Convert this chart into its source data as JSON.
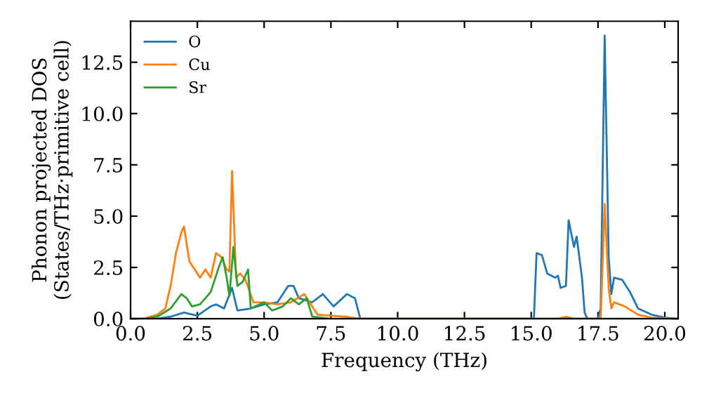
{
  "chart_data": {
    "type": "line",
    "xlabel": "Frequency (THz)",
    "ylabel": "Phonon projected DOS\n(States/THz·primitive cell)",
    "xlim": [
      0,
      20.5
    ],
    "ylim": [
      0,
      14.5
    ],
    "xticks": [
      {
        "value": 0,
        "label": "0.0"
      },
      {
        "value": 2.5,
        "label": "2.5"
      },
      {
        "value": 5,
        "label": "5.0"
      },
      {
        "value": 7.5,
        "label": "7.5"
      },
      {
        "value": 10,
        "label": "10.0"
      },
      {
        "value": 12.5,
        "label": "12.5"
      },
      {
        "value": 15,
        "label": "15.0"
      },
      {
        "value": 17.5,
        "label": "17.5"
      },
      {
        "value": 20,
        "label": "20.0"
      }
    ],
    "yticks": [
      {
        "value": 0,
        "label": "0.0"
      },
      {
        "value": 2.5,
        "label": "2.5"
      },
      {
        "value": 5,
        "label": "5.0"
      },
      {
        "value": 7.5,
        "label": "7.5"
      },
      {
        "value": 10,
        "label": "10.0"
      },
      {
        "value": 12.5,
        "label": "12.5"
      }
    ],
    "grid": false,
    "legend": "top left",
    "marker": "none",
    "line_style": "solid",
    "series": [
      {
        "name": "O",
        "color": "#1f77b4",
        "x": [
          0,
          1,
          1.5,
          2,
          2.5,
          3,
          3.2,
          3.5,
          3.8,
          4,
          4.5,
          5,
          5.5,
          5.9,
          6.1,
          6.3,
          6.8,
          7.2,
          7.6,
          8.1,
          8.4,
          8.6,
          15.1,
          15.2,
          15.4,
          15.6,
          15.9,
          16,
          16.1,
          16.3,
          16.4,
          16.6,
          16.7,
          16.9,
          17,
          17.1,
          17.5,
          17.6,
          17.75,
          17.9,
          18,
          18.1,
          18.4,
          18.7,
          19,
          19.5,
          20,
          20.5
        ],
        "values": [
          0,
          0,
          0.1,
          0.3,
          0.15,
          0.6,
          0.7,
          0.5,
          1.5,
          0.4,
          0.5,
          0.7,
          0.8,
          1.6,
          1.6,
          1,
          0.8,
          1.2,
          0.6,
          1.2,
          1,
          0,
          0,
          3.2,
          3.1,
          2.2,
          2,
          2.1,
          1.5,
          1.6,
          4.8,
          3.5,
          4,
          2,
          0.3,
          0,
          0,
          0.5,
          13.8,
          3,
          1.2,
          2,
          1.9,
          1.3,
          0.5,
          0.2,
          0.05,
          0
        ]
      },
      {
        "name": "Cu",
        "color": "#ff7f0e",
        "x": [
          0,
          0.5,
          1,
          1.3,
          1.5,
          1.7,
          1.9,
          2,
          2.2,
          2.6,
          2.8,
          3,
          3.2,
          3.4,
          3.6,
          3.7,
          3.8,
          3.95,
          4.1,
          4.3,
          4.6,
          5,
          5.5,
          6,
          6.5,
          7,
          8,
          8.6,
          16,
          16.3,
          16.6,
          17.6,
          17.75,
          17.9,
          18,
          18.1,
          18.5,
          19,
          19.5,
          20.5
        ],
        "values": [
          0,
          0,
          0.2,
          0.5,
          1.6,
          3.2,
          4.2,
          4.5,
          2.8,
          2,
          2.4,
          2,
          3.2,
          3,
          2.4,
          2.3,
          7.2,
          2,
          2.2,
          1.9,
          0.8,
          0.8,
          0.7,
          0.8,
          1.2,
          0.2,
          0.1,
          0,
          0,
          0.1,
          0,
          0,
          5.6,
          1.5,
          0.5,
          0.8,
          0.6,
          0.2,
          0.05,
          0
        ]
      },
      {
        "name": "Sr",
        "color": "#2ca02c",
        "x": [
          0,
          0.5,
          1,
          1.5,
          1.9,
          2.1,
          2.3,
          2.6,
          3,
          3.3,
          3.45,
          3.6,
          3.7,
          3.85,
          4,
          4.2,
          4.4,
          4.5,
          5,
          5.3,
          5.7,
          6,
          6.3,
          6.6,
          6.8,
          7.5,
          20.5
        ],
        "values": [
          0,
          0,
          0.1,
          0.5,
          1.2,
          1,
          0.6,
          0.7,
          1.3,
          2.5,
          3,
          2,
          1.1,
          3.5,
          1.6,
          1.8,
          2.4,
          0.5,
          0.8,
          0.4,
          0.6,
          1,
          0.7,
          1,
          0.1,
          0,
          0
        ]
      }
    ]
  }
}
